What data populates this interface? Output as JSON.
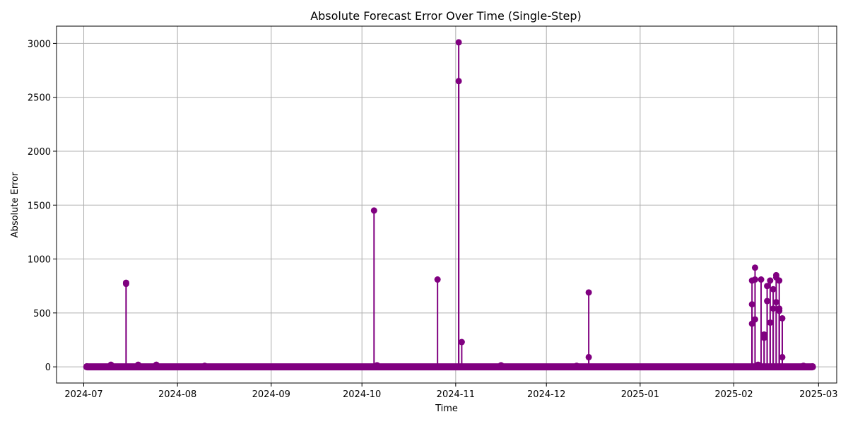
{
  "chart_data": {
    "type": "line",
    "title": "Absolute Forecast Error Over Time (Single-Step)",
    "xlabel": "Time",
    "ylabel": "Absolute Error",
    "grid": true,
    "legend": "none",
    "colors": {
      "series": "#800080"
    },
    "xlim": [
      "2024-06-22",
      "2025-03-07"
    ],
    "ylim": [
      -150,
      3160
    ],
    "x_ticks": [
      "2024-07",
      "2024-08",
      "2024-09",
      "2024-10",
      "2024-11",
      "2024-12",
      "2025-01",
      "2025-02",
      "2025-03"
    ],
    "y_ticks": [
      0,
      500,
      1000,
      1500,
      2000,
      2500,
      3000
    ],
    "baseline": {
      "x_start": "2024-07-02",
      "x_end": "2025-02-27",
      "y": 0
    },
    "series": [
      {
        "x": [
          "2024-07-02",
          "2024-07-10",
          "2024-07-15",
          "2024-07-15",
          "2024-07-19",
          "2024-07-25",
          "2024-08-10",
          "2024-10-05",
          "2024-10-06",
          "2024-10-26",
          "2024-11-02",
          "2024-11-02",
          "2024-11-03",
          "2024-11-16",
          "2024-12-11",
          "2024-12-15",
          "2024-12-15",
          "2025-02-07",
          "2025-02-07",
          "2025-02-07",
          "2025-02-08",
          "2025-02-08",
          "2025-02-08",
          "2025-02-09",
          "2025-02-10",
          "2025-02-11",
          "2025-02-11",
          "2025-02-12",
          "2025-02-12",
          "2025-02-13",
          "2025-02-13",
          "2025-02-14",
          "2025-02-14",
          "2025-02-15",
          "2025-02-15",
          "2025-02-15",
          "2025-02-16",
          "2025-02-16",
          "2025-02-16",
          "2025-02-17",
          "2025-02-17",
          "2025-02-24",
          "2025-02-27"
        ],
        "y": [
          5,
          20,
          780,
          770,
          20,
          20,
          10,
          1450,
          15,
          810,
          3010,
          2650,
          230,
          15,
          10,
          690,
          90,
          800,
          580,
          400,
          920,
          810,
          440,
          20,
          810,
          300,
          270,
          750,
          610,
          410,
          800,
          540,
          720,
          830,
          850,
          600,
          520,
          800,
          540,
          450,
          90,
          10,
          5
        ]
      }
    ]
  }
}
